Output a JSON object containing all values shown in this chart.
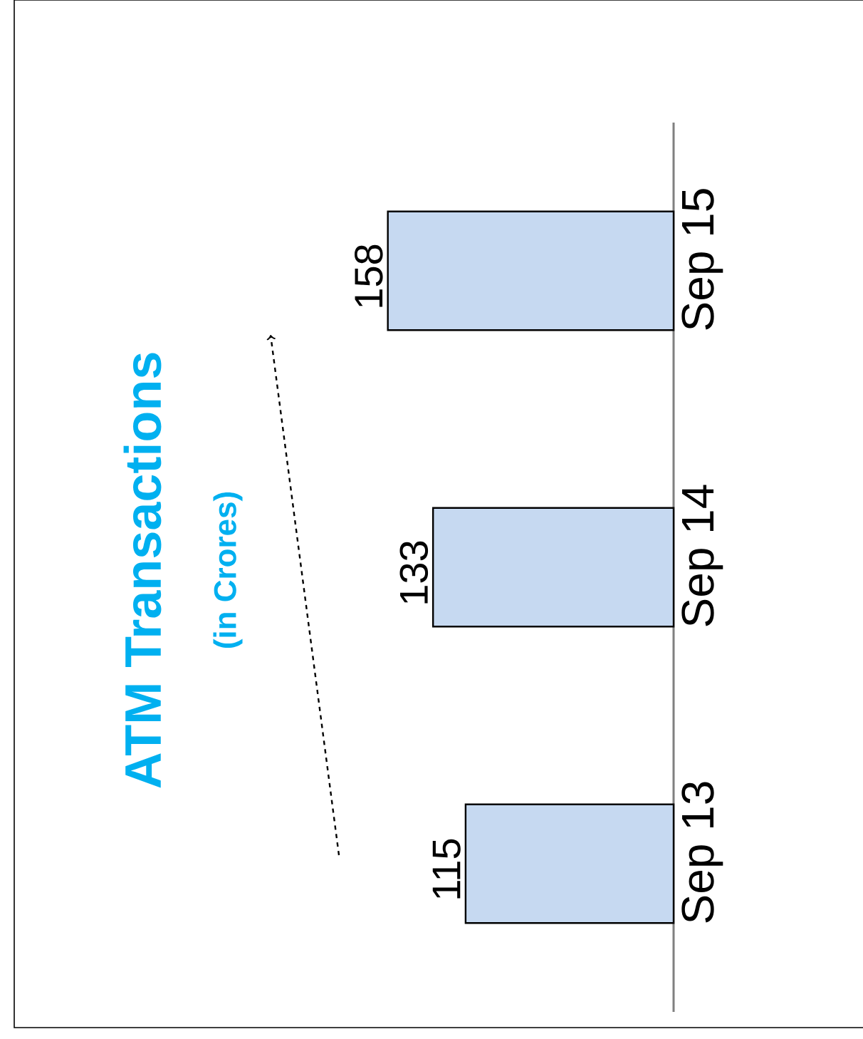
{
  "chart_data": {
    "type": "bar",
    "orientation": "horizontal",
    "title": "ATM Transactions",
    "subtitle": "(in Crores)",
    "categories": [
      "Sep 15",
      "Sep 14",
      "Sep 13"
    ],
    "values": [
      158,
      133,
      115
    ],
    "color": "#c6d9f1",
    "data_labels": true
  }
}
